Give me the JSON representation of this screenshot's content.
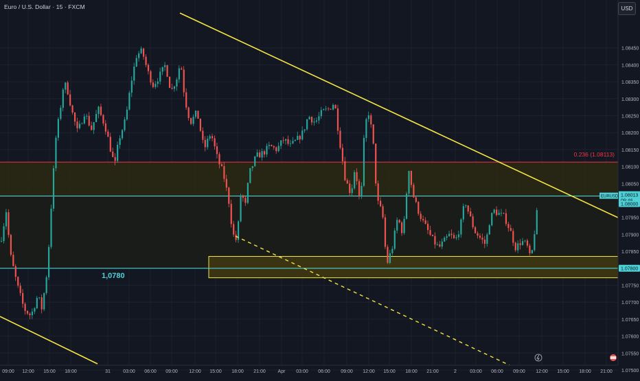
{
  "header": {
    "title": "Euro / U.S. Dollar · 15 · FXCM",
    "currency_button": "USD"
  },
  "colors": {
    "background": "#131722",
    "up": "#26a69a",
    "down": "#ef5350",
    "trendline": "#f5e642",
    "cyan_level": "#4dd0d6",
    "fib_line": "#f23645",
    "zone_fill": "#3a3412",
    "zone_border": "#f5e642"
  },
  "annotations": {
    "fib_label": "0.236 (1.08113)",
    "level_label": "1,0780",
    "symbol_tag": "EURUSD",
    "symbol_price": "1.08013",
    "countdown": "09:46",
    "tag_108000": "1.08000",
    "tag_107800": "1.07800"
  },
  "chart_data": {
    "type": "candlestick",
    "symbol": "EURUSD",
    "timeframe": "15",
    "ylim": [
      1.0745,
      1.0857
    ],
    "y_ticks": [
      "1.08450",
      "1.08400",
      "1.08350",
      "1.08300",
      "1.08250",
      "1.08200",
      "1.08150",
      "1.08100",
      "1.08050",
      "1.07950",
      "1.07900",
      "1.07850",
      "1.07750",
      "1.07700",
      "1.07650",
      "1.07600",
      "1.07550",
      "1.07500"
    ],
    "x_ticks": [
      "09:00",
      "12:00",
      "15:00",
      "18:00",
      "31",
      "03:00",
      "06:00",
      "09:00",
      "12:00",
      "15:00",
      "18:00",
      "21:00",
      "Apr",
      "03:00",
      "06:00",
      "09:00",
      "12:00",
      "15:00",
      "18:00",
      "21:00",
      "2",
      "03:00",
      "06:00",
      "09:00",
      "12:00",
      "15:00",
      "18:00",
      "21:00"
    ],
    "levels": [
      {
        "label": "0.236 (1.08113)",
        "value": 1.08113
      },
      {
        "label": "EURUSD",
        "value": 1.08013
      },
      {
        "label": "1,0780",
        "value": 1.078
      }
    ],
    "zone": {
      "low": 1.07772,
      "high": 1.07835
    },
    "trendlines": [
      {
        "from": [
          "31 09:00",
          1.0849
        ],
        "to": [
          "2 21:00",
          1.079
        ],
        "style": "solid"
      },
      {
        "from": [
          "31 15:00",
          1.0784
        ],
        "to": [
          "2 09:00",
          1.0744
        ],
        "style": "dashed"
      },
      {
        "from": [
          "30 09:00",
          1.0762
        ],
        "to": [
          "31 01:00",
          1.0745
        ],
        "style": "solid"
      }
    ],
    "close_path": [
      {
        "t": 0,
        "v": 1.0788
      },
      {
        "t": 8,
        "v": 1.0797
      },
      {
        "t": 14,
        "v": 1.0784
      },
      {
        "t": 24,
        "v": 1.0775
      },
      {
        "t": 34,
        "v": 1.0768
      },
      {
        "t": 44,
        "v": 1.0766
      },
      {
        "t": 54,
        "v": 1.0772
      },
      {
        "t": 60,
        "v": 1.0768
      },
      {
        "t": 68,
        "v": 1.078
      },
      {
        "t": 74,
        "v": 1.08
      },
      {
        "t": 80,
        "v": 1.0818
      },
      {
        "t": 86,
        "v": 1.0826
      },
      {
        "t": 92,
        "v": 1.0835
      },
      {
        "t": 98,
        "v": 1.0832
      },
      {
        "t": 104,
        "v": 1.0826
      },
      {
        "t": 112,
        "v": 1.082
      },
      {
        "t": 122,
        "v": 1.0826
      },
      {
        "t": 132,
        "v": 1.0821
      },
      {
        "t": 142,
        "v": 1.0827
      },
      {
        "t": 152,
        "v": 1.0822
      },
      {
        "t": 160,
        "v": 1.0815
      },
      {
        "t": 166,
        "v": 1.081
      },
      {
        "t": 172,
        "v": 1.0818
      },
      {
        "t": 182,
        "v": 1.0824
      },
      {
        "t": 190,
        "v": 1.0835
      },
      {
        "t": 198,
        "v": 1.0843
      },
      {
        "t": 206,
        "v": 1.0844
      },
      {
        "t": 214,
        "v": 1.0838
      },
      {
        "t": 222,
        "v": 1.0834
      },
      {
        "t": 232,
        "v": 1.0837
      },
      {
        "t": 240,
        "v": 1.084
      },
      {
        "t": 248,
        "v": 1.0832
      },
      {
        "t": 256,
        "v": 1.0836
      },
      {
        "t": 262,
        "v": 1.0841
      },
      {
        "t": 268,
        "v": 1.083
      },
      {
        "t": 276,
        "v": 1.0823
      },
      {
        "t": 286,
        "v": 1.0826
      },
      {
        "t": 296,
        "v": 1.0815
      },
      {
        "t": 306,
        "v": 1.082
      },
      {
        "t": 316,
        "v": 1.0812
      },
      {
        "t": 324,
        "v": 1.0808
      },
      {
        "t": 332,
        "v": 1.08
      },
      {
        "t": 338,
        "v": 1.079
      },
      {
        "t": 344,
        "v": 1.0788
      },
      {
        "t": 350,
        "v": 1.0803
      },
      {
        "t": 356,
        "v": 1.0798
      },
      {
        "t": 362,
        "v": 1.0808
      },
      {
        "t": 372,
        "v": 1.0813
      },
      {
        "t": 382,
        "v": 1.0814
      },
      {
        "t": 392,
        "v": 1.0816
      },
      {
        "t": 402,
        "v": 1.0815
      },
      {
        "t": 412,
        "v": 1.0818
      },
      {
        "t": 422,
        "v": 1.0816
      },
      {
        "t": 432,
        "v": 1.0818
      },
      {
        "t": 440,
        "v": 1.082
      },
      {
        "t": 448,
        "v": 1.0825
      },
      {
        "t": 458,
        "v": 1.0823
      },
      {
        "t": 468,
        "v": 1.0826
      },
      {
        "t": 478,
        "v": 1.0827
      },
      {
        "t": 486,
        "v": 1.0829
      },
      {
        "t": 494,
        "v": 1.0817
      },
      {
        "t": 502,
        "v": 1.0806
      },
      {
        "t": 510,
        "v": 1.0802
      },
      {
        "t": 516,
        "v": 1.081
      },
      {
        "t": 524,
        "v": 1.0798
      },
      {
        "t": 530,
        "v": 1.0822
      },
      {
        "t": 536,
        "v": 1.0826
      },
      {
        "t": 542,
        "v": 1.0818
      },
      {
        "t": 548,
        "v": 1.08
      },
      {
        "t": 556,
        "v": 1.0796
      },
      {
        "t": 562,
        "v": 1.0781
      },
      {
        "t": 570,
        "v": 1.0786
      },
      {
        "t": 578,
        "v": 1.0795
      },
      {
        "t": 586,
        "v": 1.079
      },
      {
        "t": 594,
        "v": 1.081
      },
      {
        "t": 600,
        "v": 1.0802
      },
      {
        "t": 606,
        "v": 1.0798
      },
      {
        "t": 614,
        "v": 1.0794
      },
      {
        "t": 622,
        "v": 1.0791
      },
      {
        "t": 630,
        "v": 1.0788
      },
      {
        "t": 638,
        "v": 1.0786
      },
      {
        "t": 646,
        "v": 1.0788
      },
      {
        "t": 654,
        "v": 1.079
      },
      {
        "t": 662,
        "v": 1.0788
      },
      {
        "t": 670,
        "v": 1.0793
      },
      {
        "t": 676,
        "v": 1.08
      },
      {
        "t": 682,
        "v": 1.0796
      },
      {
        "t": 690,
        "v": 1.0791
      },
      {
        "t": 698,
        "v": 1.0789
      },
      {
        "t": 706,
        "v": 1.0787
      },
      {
        "t": 712,
        "v": 1.0794
      },
      {
        "t": 718,
        "v": 1.0797
      },
      {
        "t": 726,
        "v": 1.0796
      },
      {
        "t": 734,
        "v": 1.0795
      },
      {
        "t": 742,
        "v": 1.0791
      },
      {
        "t": 750,
        "v": 1.0786
      },
      {
        "t": 758,
        "v": 1.0788
      },
      {
        "t": 766,
        "v": 1.0787
      },
      {
        "t": 772,
        "v": 1.0782
      },
      {
        "t": 778,
        "v": 1.0792
      },
      {
        "t": 784,
        "v": 1.0801
      }
    ]
  }
}
